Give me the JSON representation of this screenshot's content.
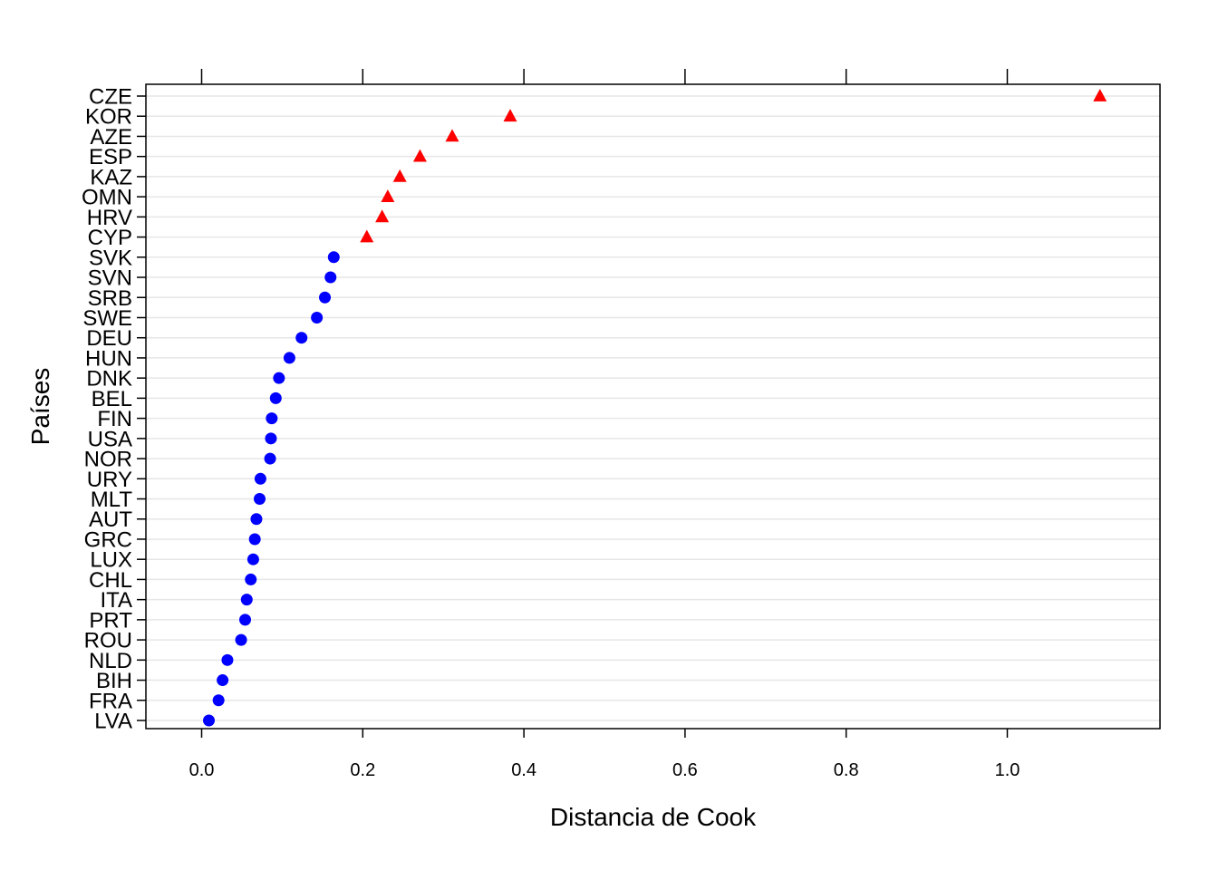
{
  "chart_data": {
    "type": "scatter",
    "xlabel": "Distancia de Cook",
    "ylabel": "Países",
    "xlim": [
      -0.07,
      1.19
    ],
    "xticks": [
      "0.0",
      "0.2",
      "0.4",
      "0.6",
      "0.8",
      "1.0"
    ],
    "grid": "horizontal",
    "colors": {
      "high": "#ff0000",
      "normal": "#0000ff",
      "grid": "#e6e6e6"
    },
    "categories": [
      "CZE",
      "KOR",
      "AZE",
      "ESP",
      "KAZ",
      "OMN",
      "HRV",
      "CYP",
      "SVK",
      "SVN",
      "SRB",
      "SWE",
      "DEU",
      "HUN",
      "DNK",
      "BEL",
      "FIN",
      "USA",
      "NOR",
      "URY",
      "MLT",
      "AUT",
      "GRC",
      "LUX",
      "CHL",
      "ITA",
      "PRT",
      "ROU",
      "NLD",
      "BIH",
      "FRA",
      "LVA"
    ],
    "series": [
      {
        "marker": "triangle",
        "color": "#ff0000",
        "points": [
          {
            "country": "CZE",
            "x": 1.115
          },
          {
            "country": "KOR",
            "x": 0.383
          },
          {
            "country": "AZE",
            "x": 0.311
          },
          {
            "country": "ESP",
            "x": 0.271
          },
          {
            "country": "KAZ",
            "x": 0.246
          },
          {
            "country": "OMN",
            "x": 0.231
          },
          {
            "country": "HRV",
            "x": 0.224
          },
          {
            "country": "CYP",
            "x": 0.205
          }
        ]
      },
      {
        "marker": "circle",
        "color": "#0000ff",
        "points": [
          {
            "country": "SVK",
            "x": 0.164
          },
          {
            "country": "SVN",
            "x": 0.16
          },
          {
            "country": "SRB",
            "x": 0.153
          },
          {
            "country": "SWE",
            "x": 0.143
          },
          {
            "country": "DEU",
            "x": 0.124
          },
          {
            "country": "HUN",
            "x": 0.109
          },
          {
            "country": "DNK",
            "x": 0.096
          },
          {
            "country": "BEL",
            "x": 0.092
          },
          {
            "country": "FIN",
            "x": 0.087
          },
          {
            "country": "USA",
            "x": 0.086
          },
          {
            "country": "NOR",
            "x": 0.085
          },
          {
            "country": "URY",
            "x": 0.073
          },
          {
            "country": "MLT",
            "x": 0.072
          },
          {
            "country": "AUT",
            "x": 0.068
          },
          {
            "country": "GRC",
            "x": 0.066
          },
          {
            "country": "LUX",
            "x": 0.064
          },
          {
            "country": "CHL",
            "x": 0.061
          },
          {
            "country": "ITA",
            "x": 0.056
          },
          {
            "country": "PRT",
            "x": 0.054
          },
          {
            "country": "ROU",
            "x": 0.049
          },
          {
            "country": "NLD",
            "x": 0.032
          },
          {
            "country": "BIH",
            "x": 0.026
          },
          {
            "country": "FRA",
            "x": 0.021
          },
          {
            "country": "LVA",
            "x": 0.009
          }
        ]
      }
    ]
  }
}
